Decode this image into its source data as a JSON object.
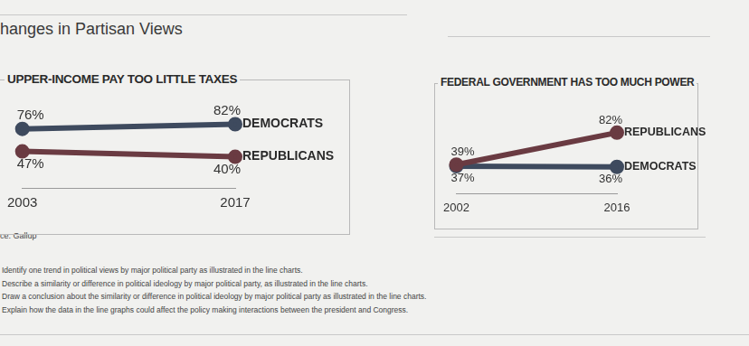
{
  "page": {
    "title": "hanges in Partisan Views",
    "source": "ce: Gallup",
    "questions": [
      "Identify one trend in political views by major political party as illustrated in the line charts.",
      "Describe a similarity or difference in political ideology by major political party, as illustrated in the line charts.",
      "Draw a conclusion about the similarity or difference in political ideology by major political party as illustrated in the line charts.",
      "Explain how the data in the line graphs could affect the policy making interactions between the president and Congress."
    ]
  },
  "chart_data": [
    {
      "type": "line",
      "title": "UPPER-INCOME PAY TOO LITTLE TAXES",
      "categories": [
        "2003",
        "2017"
      ],
      "series": [
        {
          "name": "DEMOCRATS",
          "color": "#3e4a5e",
          "values": [
            76,
            82
          ],
          "value_labels": [
            "76%",
            "82%"
          ]
        },
        {
          "name": "REPUBLICANS",
          "color": "#6a3b42",
          "values": [
            47,
            40
          ],
          "value_labels": [
            "47%",
            "40%"
          ]
        }
      ],
      "ylim": [
        0,
        100
      ],
      "tick_labels": "x",
      "grid": false,
      "data_labels": true,
      "marker": "circle"
    },
    {
      "type": "line",
      "title": "FEDERAL GOVERNMENT HAS TOO MUCH POWER",
      "categories": [
        "2002",
        "2016"
      ],
      "series": [
        {
          "name": "REPUBLICANS",
          "color": "#6a3b42",
          "values": [
            39,
            82
          ],
          "value_labels": [
            "39%",
            "82%"
          ]
        },
        {
          "name": "DEMOCRATS",
          "color": "#3e4a5e",
          "values": [
            37,
            36
          ],
          "value_labels": [
            "37%",
            "36%"
          ]
        }
      ],
      "ylim": [
        0,
        100
      ],
      "tick_labels": "x",
      "grid": false,
      "data_labels": true,
      "marker": "circle"
    }
  ]
}
